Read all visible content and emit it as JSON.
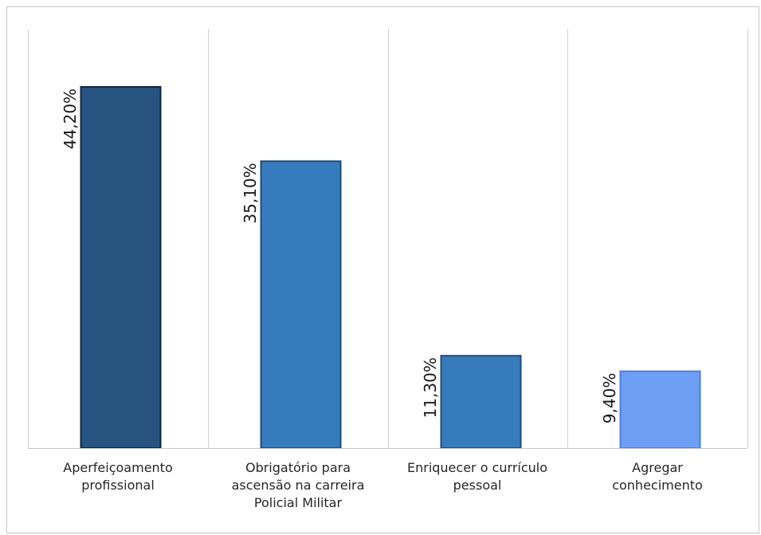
{
  "chart_data": {
    "type": "bar",
    "title": "",
    "xlabel": "",
    "ylabel": "",
    "categories": [
      "Aperfeiçoamento\nprofissional",
      "Obrigatório para\nascensão na carreira\nPolicial Militar",
      "Enriquecer o currículo\npessoal",
      "Agregar\nconhecimento"
    ],
    "values": [
      44.2,
      35.1,
      11.3,
      9.4
    ],
    "data_labels": [
      "44,20%",
      "35,10%",
      "11,30%",
      "9,40%"
    ],
    "ylim": [
      0,
      50
    ],
    "grid": "vertical category separators",
    "legend": "none",
    "bar_colors": [
      "#26537f",
      "#367cbd",
      "#367cbd",
      "#6e9ff5"
    ],
    "bar_borders": [
      "#0f2740",
      "#1f4b7a",
      "#1f4b7a",
      "#4a7fd9"
    ]
  }
}
